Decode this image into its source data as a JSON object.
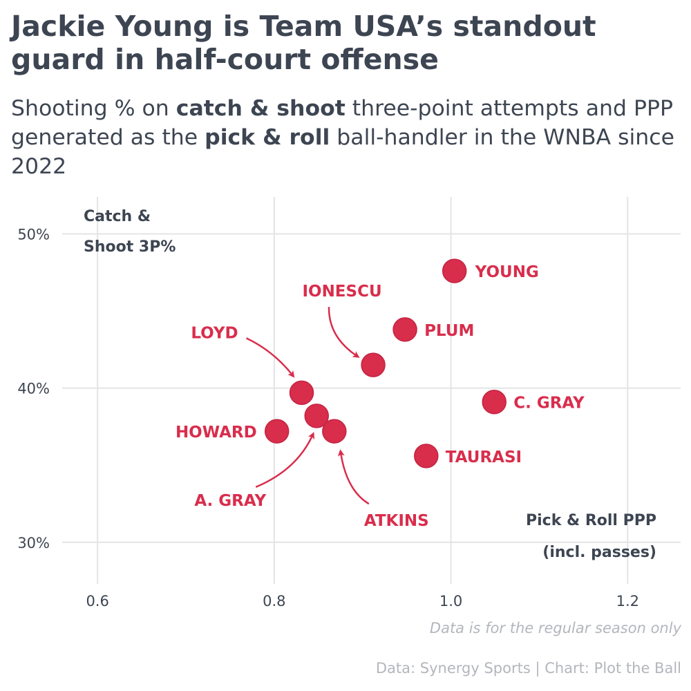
{
  "title": "Jackie Young is Team USA’s standout guard in half-court offense",
  "subtitle": {
    "p1": "Shooting % on ",
    "b1": "catch & shoot",
    "p2": " three-point attempts and PPP generated as the ",
    "b2": "pick & roll",
    "p3": " ball-handler in the WNBA since 2022"
  },
  "chart_data": {
    "type": "scatter",
    "xlabel": [
      "Pick & Roll PPP",
      "(incl. passes)"
    ],
    "ylabel": [
      "Catch &",
      "Shoot 3P%"
    ],
    "xlim": [
      0.56,
      1.26
    ],
    "ylim": [
      27.3,
      52.4
    ],
    "x_ticks": [
      0.6,
      0.8,
      1.0,
      1.2
    ],
    "x_tick_labels": [
      "0.6",
      "0.8",
      "1.0",
      "1.2"
    ],
    "y_ticks": [
      30,
      40,
      50
    ],
    "y_tick_labels": [
      "30%",
      "40%",
      "50%"
    ],
    "color": "#d92d4c",
    "points": [
      {
        "name": "YOUNG",
        "x": 1.004,
        "y": 47.6
      },
      {
        "name": "PLUM",
        "x": 0.948,
        "y": 43.8
      },
      {
        "name": "IONESCU",
        "x": 0.912,
        "y": 41.5
      },
      {
        "name": "LOYD",
        "x": 0.831,
        "y": 39.7
      },
      {
        "name": "C. GRAY",
        "x": 1.049,
        "y": 39.1
      },
      {
        "name": "A. GRAY",
        "x": 0.848,
        "y": 38.2
      },
      {
        "name": "HOWARD",
        "x": 0.803,
        "y": 37.2
      },
      {
        "name": "ATKINS",
        "x": 0.868,
        "y": 37.2
      },
      {
        "name": "TAURASI",
        "x": 0.972,
        "y": 35.6
      }
    ]
  },
  "footer": {
    "note": "Data is for the regular season only",
    "credit": "Data: Synergy Sports | Chart: Plot the Ball"
  }
}
